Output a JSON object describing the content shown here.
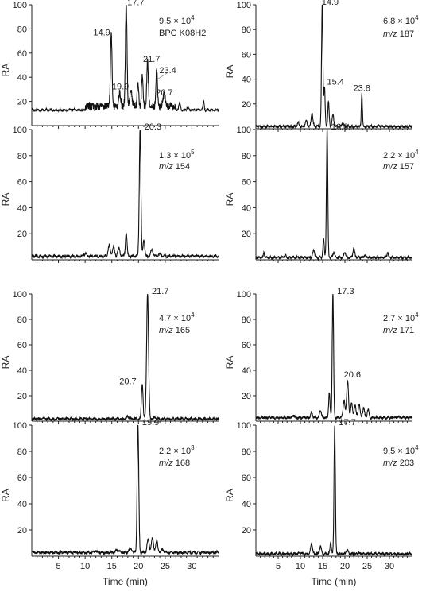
{
  "figure": {
    "xlabel": "Time (min)",
    "ylabel": "RA"
  },
  "chart_data": [
    {
      "type": "line",
      "title": "",
      "xlabel": "",
      "ylabel": "RA",
      "xlim": [
        0,
        35
      ],
      "ylim": [
        0,
        100
      ],
      "yticks": [
        20,
        40,
        60,
        80,
        100
      ],
      "xticks": [],
      "annot": [
        [
          "9.5 × 10",
          "4",
          ""
        ],
        [
          "BPC K08H2",
          "",
          ""
        ]
      ],
      "baseline": 12,
      "peaks": [
        [
          14.9,
          72,
          0.15
        ],
        [
          17.7,
          97,
          0.15
        ],
        [
          19.9,
          30,
          0.15
        ],
        [
          20.7,
          38,
          0.15
        ],
        [
          21.7,
          50,
          0.15
        ],
        [
          23.4,
          42,
          0.15
        ],
        [
          16.5,
          22,
          0.2
        ],
        [
          18.6,
          24,
          0.2
        ],
        [
          24.8,
          22,
          0.2
        ],
        [
          27.7,
          18,
          0.15
        ],
        [
          29.2,
          15,
          0.15
        ],
        [
          32.2,
          19,
          0.12
        ]
      ],
      "peak_labels": [
        [
          "14.9",
          14.9,
          72
        ],
        [
          "17.7",
          17.7,
          97
        ],
        [
          "19.9",
          19.9,
          30
        ],
        [
          "21.7",
          21.7,
          50
        ],
        [
          "23.4",
          23.4,
          42
        ],
        [
          "20.7",
          20.7,
          38
        ]
      ]
    },
    {
      "type": "line",
      "title": "",
      "xlabel": "",
      "ylabel": "RA",
      "xlim": [
        0,
        35
      ],
      "ylim": [
        0,
        100
      ],
      "yticks": [
        20,
        40,
        60,
        80,
        100
      ],
      "xticks": [],
      "annot": [
        [
          "6.8 × 10",
          "4",
          ""
        ],
        [
          "",
          "",
          "m/z 187"
        ]
      ],
      "baseline": 1,
      "peaks": [
        [
          14.9,
          100,
          0.15
        ],
        [
          15.4,
          33,
          0.15
        ],
        [
          23.8,
          28,
          0.12
        ],
        [
          16.3,
          21,
          0.15
        ],
        [
          12.6,
          12,
          0.2
        ],
        [
          17.3,
          10,
          0.2
        ],
        [
          11.3,
          6,
          0.2
        ],
        [
          9.5,
          4,
          0.2
        ],
        [
          19.5,
          4,
          0.2
        ],
        [
          27.5,
          2,
          0.2
        ]
      ],
      "peak_labels": [
        [
          "14.9",
          14.9,
          100
        ],
        [
          "15.4",
          15.4,
          33
        ],
        [
          "23.8",
          23.8,
          28
        ]
      ]
    },
    {
      "type": "line",
      "title": "",
      "xlabel": "",
      "ylabel": "RA",
      "xlim": [
        0,
        35
      ],
      "ylim": [
        0,
        100
      ],
      "yticks": [
        20,
        40,
        60,
        80,
        100
      ],
      "xticks": [],
      "annot": [
        [
          "1.3 × 10",
          "5",
          ""
        ],
        [
          "",
          "",
          "m/z 154"
        ]
      ],
      "baseline": 2,
      "peaks": [
        [
          20.3,
          100,
          0.15
        ],
        [
          17.7,
          20,
          0.15
        ],
        [
          14.5,
          10,
          0.2
        ],
        [
          15.3,
          9,
          0.2
        ],
        [
          16.3,
          8,
          0.2
        ],
        [
          21.0,
          15,
          0.15
        ],
        [
          22.5,
          7,
          0.2
        ],
        [
          24.0,
          4,
          0.2
        ],
        [
          10.0,
          4,
          0.3
        ],
        [
          6.5,
          2,
          0.3
        ]
      ],
      "peak_labels": [
        [
          "20.3",
          20.3,
          100
        ]
      ]
    },
    {
      "type": "line",
      "title": "",
      "xlabel": "",
      "ylabel": "RA",
      "xlim": [
        0,
        35
      ],
      "ylim": [
        0,
        100
      ],
      "yticks": [
        20,
        40,
        60,
        80,
        100
      ],
      "xticks": [],
      "annot": [
        [
          "2.2 × 10",
          "4",
          ""
        ],
        [
          "",
          "",
          "m/z 157"
        ]
      ],
      "baseline": 1,
      "peaks": [
        [
          16.0,
          100,
          0.15
        ],
        [
          15.2,
          15,
          0.15
        ],
        [
          13.0,
          7,
          0.2
        ],
        [
          17.5,
          5,
          0.2
        ],
        [
          20.0,
          5,
          0.2
        ],
        [
          22.0,
          8,
          0.2
        ],
        [
          29.6,
          5,
          0.15
        ],
        [
          1.8,
          5,
          0.1
        ],
        [
          6.5,
          3,
          0.2
        ],
        [
          24.5,
          3,
          0.2
        ]
      ],
      "peak_labels": [
        [
          "16.0",
          16.0,
          100
        ]
      ]
    },
    {
      "type": "line",
      "title": "",
      "xlabel": "",
      "ylabel": "RA",
      "xlim": [
        0,
        35
      ],
      "ylim": [
        0,
        100
      ],
      "yticks": [
        20,
        40,
        60,
        80,
        100
      ],
      "xticks": [],
      "annot": [
        [
          "4.7 × 10",
          "4",
          ""
        ],
        [
          "",
          "",
          "m/z 165"
        ]
      ],
      "baseline": 1,
      "peaks": [
        [
          21.7,
          100,
          0.18
        ],
        [
          20.7,
          29,
          0.15
        ],
        [
          18.0,
          3,
          0.2
        ],
        [
          23.0,
          2,
          0.2
        ]
      ],
      "peak_labels": [
        [
          "21.7",
          21.7,
          100
        ],
        [
          "20.7",
          20.7,
          29
        ]
      ]
    },
    {
      "type": "line",
      "title": "",
      "xlabel": "",
      "ylabel": "RA",
      "xlim": [
        0,
        35
      ],
      "ylim": [
        0,
        100
      ],
      "yticks": [
        20,
        40,
        60,
        80,
        100
      ],
      "xticks": [],
      "annot": [
        [
          "2.7 × 10",
          "4",
          ""
        ],
        [
          "",
          "",
          "m/z 171"
        ]
      ],
      "baseline": 2,
      "peaks": [
        [
          17.3,
          100,
          0.15
        ],
        [
          16.5,
          22,
          0.15
        ],
        [
          20.6,
          32,
          0.2
        ],
        [
          19.8,
          16,
          0.2
        ],
        [
          21.5,
          14,
          0.2
        ],
        [
          22.3,
          12,
          0.2
        ],
        [
          23.2,
          13,
          0.2
        ],
        [
          24.2,
          10,
          0.2
        ],
        [
          25.2,
          8,
          0.2
        ],
        [
          14.5,
          8,
          0.2
        ],
        [
          12.5,
          6,
          0.2
        ],
        [
          8.5,
          4,
          0.2
        ],
        [
          32.0,
          3,
          0.15
        ]
      ],
      "peak_labels": [
        [
          "17.3",
          17.3,
          100
        ],
        [
          "20.6",
          20.6,
          32
        ]
      ]
    },
    {
      "type": "line",
      "title": "",
      "xlabel": "Time (min)",
      "ylabel": "RA",
      "xlim": [
        0,
        35
      ],
      "ylim": [
        0,
        100
      ],
      "yticks": [
        20,
        40,
        60,
        80,
        100
      ],
      "xticks": [
        5,
        10,
        15,
        20,
        25,
        30
      ],
      "annot": [
        [
          "2.2 × 10",
          "3",
          ""
        ],
        [
          "",
          "",
          "m/z 168"
        ]
      ],
      "baseline": 2,
      "peaks": [
        [
          19.9,
          100,
          0.15
        ],
        [
          21.8,
          12,
          0.2
        ],
        [
          22.6,
          13,
          0.2
        ],
        [
          23.4,
          11,
          0.2
        ],
        [
          18.5,
          5,
          0.3
        ],
        [
          16.0,
          4,
          0.3
        ],
        [
          24.5,
          4,
          0.3
        ],
        [
          12.0,
          3,
          0.3
        ],
        [
          8.0,
          2,
          0.3
        ]
      ],
      "peak_labels": [
        [
          "19.9",
          19.9,
          100
        ]
      ]
    },
    {
      "type": "line",
      "title": "",
      "xlabel": "Time (min)",
      "ylabel": "RA",
      "xlim": [
        0,
        35
      ],
      "ylim": [
        0,
        100
      ],
      "yticks": [
        20,
        40,
        60,
        80,
        100
      ],
      "xticks": [
        5,
        10,
        15,
        20,
        25,
        30
      ],
      "annot": [
        [
          "9.5 × 10",
          "4",
          ""
        ],
        [
          "",
          "",
          "m/z 203"
        ]
      ],
      "baseline": 1,
      "peaks": [
        [
          17.7,
          100,
          0.15
        ],
        [
          16.8,
          10,
          0.15
        ],
        [
          12.5,
          9,
          0.2
        ],
        [
          14.5,
          7,
          0.2
        ],
        [
          20.5,
          4,
          0.2
        ],
        [
          10.0,
          2,
          0.2
        ],
        [
          23.0,
          2,
          0.2
        ],
        [
          26.0,
          1,
          0.2
        ]
      ],
      "peak_labels": [
        [
          "17.7",
          17.7,
          100
        ]
      ]
    }
  ]
}
